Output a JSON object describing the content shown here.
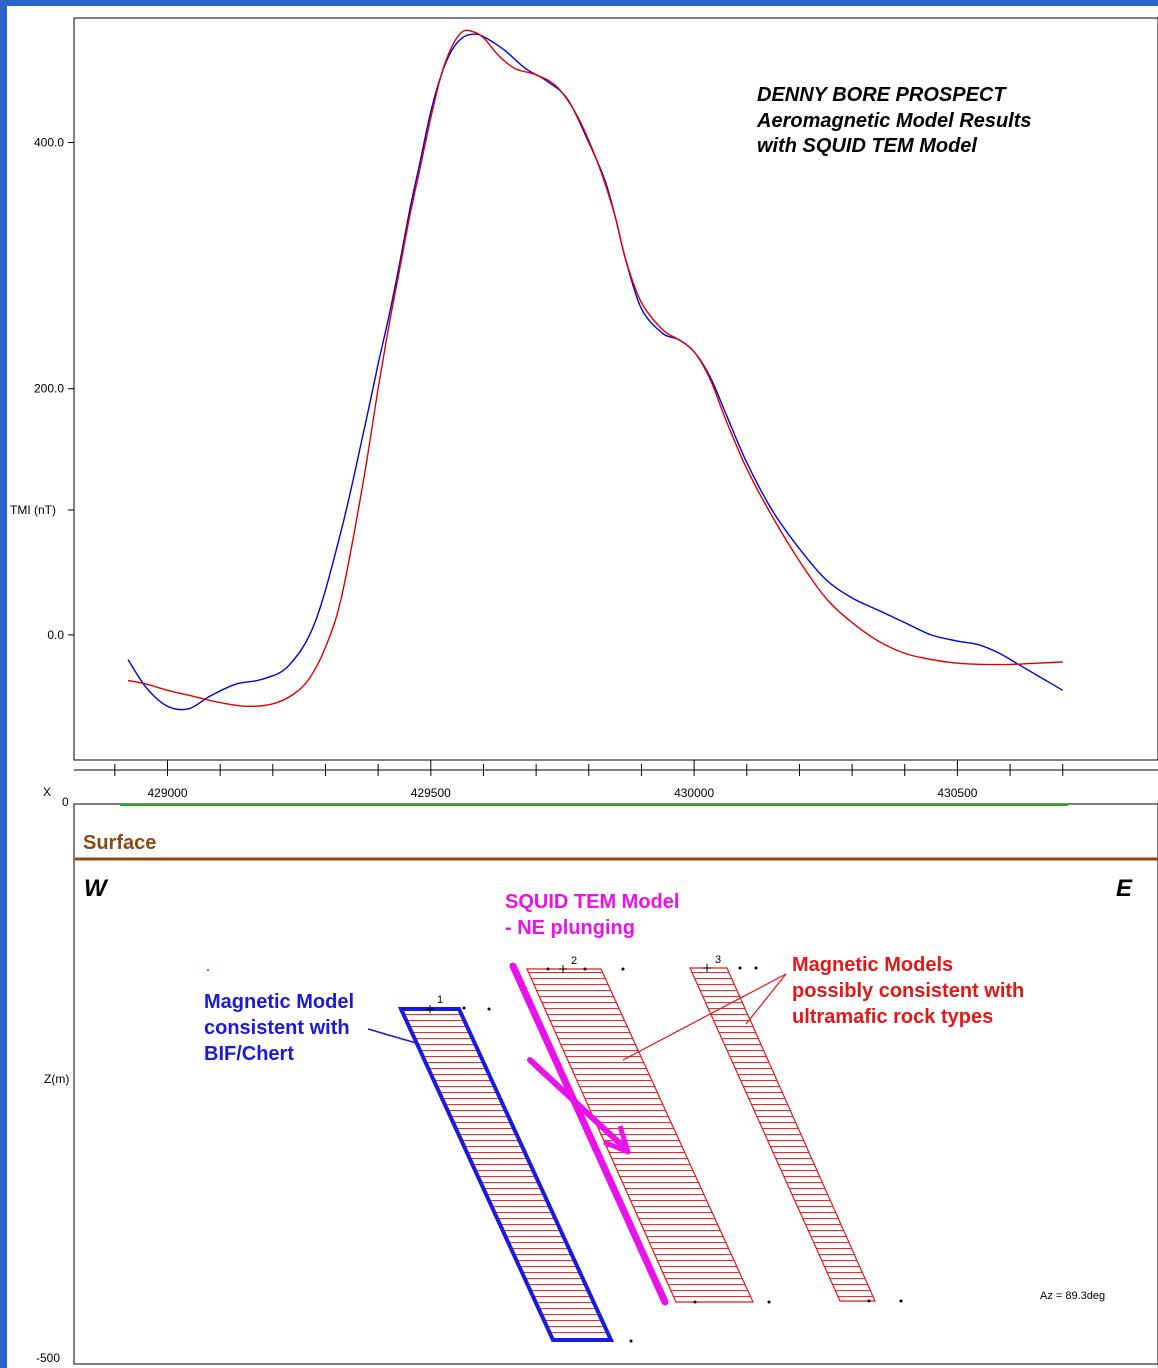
{
  "chart_data": [
    {
      "type": "line",
      "title_lines": [
        "DENNY BORE PROSPECT",
        "Aeromagnetic Model Results",
        "with SQUID TEM Model"
      ],
      "ylabel": "TMI (nT)",
      "xlabel": "",
      "xlim": [
        428925,
        430710
      ],
      "ylim": [
        -100,
        480
      ],
      "yticks": [
        0.0,
        200.0,
        400.0
      ],
      "ytick_labels": [
        "0.0",
        "200.0",
        "400.0"
      ],
      "xticks": [
        429000,
        429500,
        430000,
        430500
      ],
      "xtick_labels": [
        "429000",
        "429500",
        "430000",
        "430500"
      ],
      "grid": false,
      "series": [
        {
          "color": "#0000e0",
          "x": [
            428925,
            428960,
            429000,
            429040,
            429080,
            429130,
            429180,
            429230,
            429280,
            429330,
            429370,
            429400,
            429420,
            429440,
            429460,
            429480,
            429500,
            429520,
            429540,
            429560,
            429580,
            429600,
            429640,
            429680,
            429720,
            429760,
            429800,
            429830,
            429850,
            429870,
            429900,
            429940,
            429970,
            430000,
            430030,
            430060,
            430100,
            430150,
            430200,
            430250,
            430300,
            430350,
            430400,
            430450,
            430500,
            430540,
            430580,
            430620,
            430660,
            430700
          ],
          "y": [
            -20,
            -43,
            -58,
            -60,
            -50,
            -40,
            -36,
            -25,
            10,
            85,
            160,
            220,
            258,
            300,
            345,
            385,
            425,
            455,
            475,
            485,
            488,
            486,
            475,
            460,
            450,
            435,
            400,
            370,
            340,
            305,
            265,
            245,
            240,
            230,
            210,
            180,
            140,
            100,
            70,
            45,
            30,
            20,
            10,
            0,
            -5,
            -8,
            -15,
            -25,
            -35,
            -45
          ]
        },
        {
          "color": "#e00000",
          "x": [
            428925,
            428960,
            429000,
            429050,
            429100,
            429150,
            429200,
            429240,
            429270,
            429300,
            429330,
            429370,
            429400,
            429420,
            429440,
            429460,
            429480,
            429500,
            429520,
            429540,
            429560,
            429580,
            429600,
            429630,
            429660,
            429700,
            429740,
            429780,
            429820,
            429850,
            429870,
            429900,
            429940,
            429970,
            430000,
            430030,
            430060,
            430100,
            430150,
            430200,
            430250,
            430300,
            430350,
            430400,
            430450,
            430500,
            430550,
            430600,
            430650,
            430700
          ],
          "y": [
            -37,
            -40,
            -45,
            -50,
            -55,
            -58,
            -56,
            -48,
            -35,
            -10,
            30,
            120,
            200,
            250,
            295,
            340,
            380,
            420,
            455,
            478,
            490,
            490,
            485,
            470,
            460,
            455,
            445,
            420,
            380,
            340,
            305,
            270,
            248,
            240,
            230,
            208,
            175,
            135,
            95,
            60,
            30,
            10,
            -5,
            -15,
            -20,
            -23,
            -24,
            -24,
            -23,
            -22
          ]
        }
      ]
    },
    {
      "type": "diagram",
      "xlabel": "X",
      "ylabel": "Z(m)",
      "ylim": [
        -500,
        0
      ],
      "yticks": [
        0,
        -500
      ],
      "ytick_labels": [
        "0",
        "-500"
      ],
      "grid": false,
      "labels": {
        "surface": "Surface",
        "west": "W",
        "east": "E",
        "azimuth": "Az = 89.3deg"
      },
      "bodies": [
        {
          "label": "1",
          "outline_color": "#1a1adc",
          "fill_color": "#e01818"
        },
        {
          "label": "2",
          "outline_color": "#e01818",
          "fill_color": "#e01818"
        },
        {
          "label": "3",
          "outline_color": "#e01818",
          "fill_color": "#e01818"
        }
      ],
      "annotations": {
        "blue_model": [
          "Magnetic Model",
          "consistent with",
          "BIF/Chert"
        ],
        "squid_model": [
          "SQUID TEM Model",
          "- NE plunging"
        ],
        "red_models": [
          "Magnetic Models",
          "possibly consistent with",
          "ultramafic rock types"
        ]
      },
      "colors": {
        "blue": "#1a1adc",
        "red": "#e01818",
        "magenta": "#ea12ea",
        "surface": "#8b4a12"
      }
    }
  ]
}
